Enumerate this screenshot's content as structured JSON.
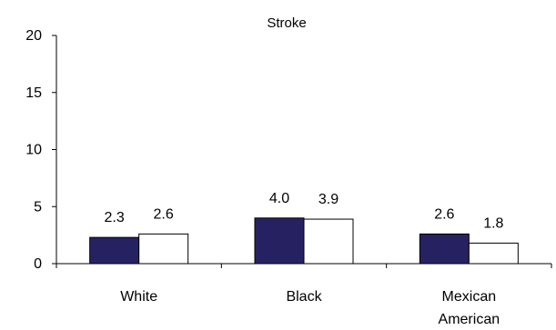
{
  "chart_data": {
    "type": "bar",
    "title": "Stroke",
    "xlabel": "",
    "ylabel": "",
    "categories": [
      "White",
      "Black",
      "Mexican American"
    ],
    "category_label_lines": [
      [
        "White"
      ],
      [
        "Black"
      ],
      [
        "Mexican",
        "American"
      ]
    ],
    "series": [
      {
        "values": [
          2.3,
          4.0,
          2.6
        ],
        "color": "#262262"
      },
      {
        "values": [
          2.6,
          3.9,
          1.8
        ],
        "color": "#ffffff"
      }
    ],
    "data_labels": [
      [
        "2.3",
        "4.0",
        "2.6"
      ],
      [
        "2.6",
        "3.9",
        "1.8"
      ]
    ],
    "ylim": [
      0,
      20
    ],
    "yticks": [
      0,
      5,
      10,
      15,
      20
    ],
    "grid": false,
    "legend": "none"
  }
}
